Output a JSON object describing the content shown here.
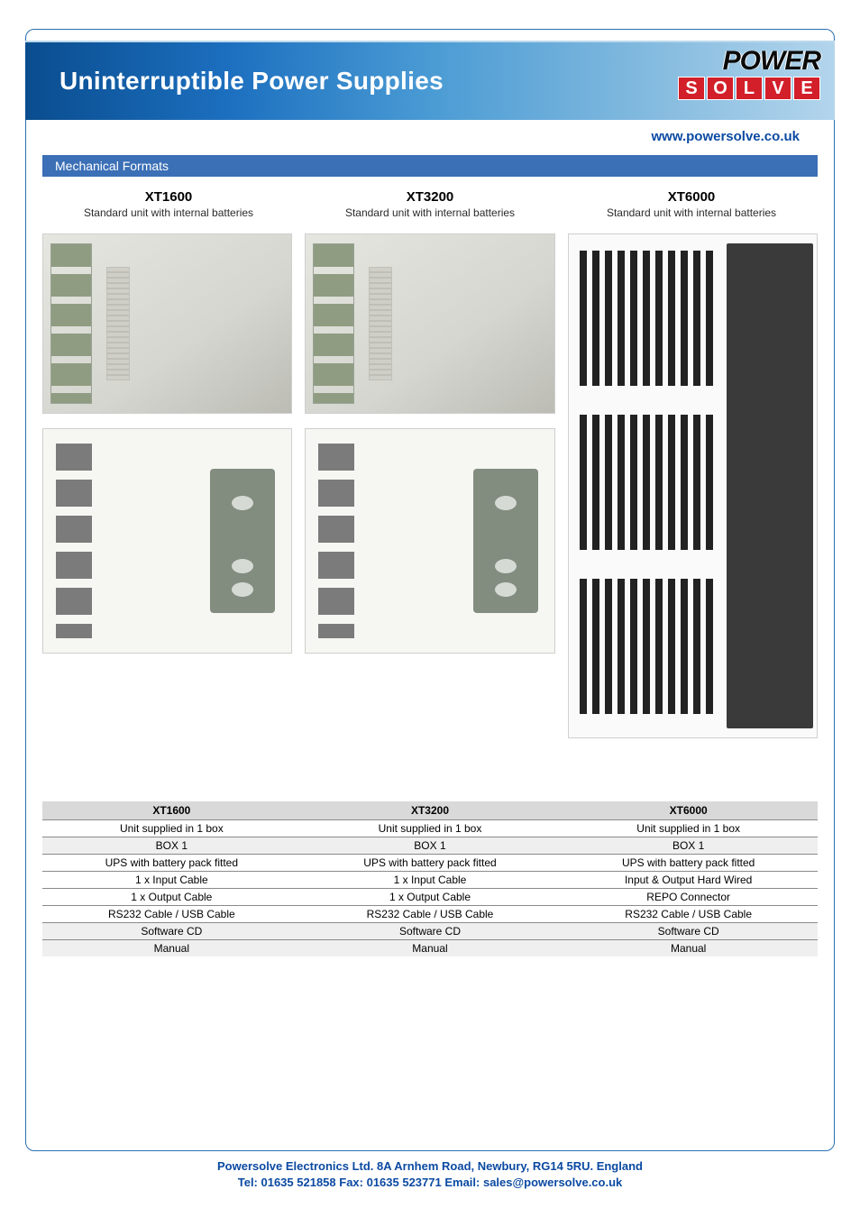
{
  "banner": {
    "title": "Uninterruptible Power Supplies"
  },
  "logo": {
    "top": "POWER",
    "bottom": [
      "S",
      "O",
      "L",
      "V",
      "E"
    ]
  },
  "url": "www.powersolve.co.uk",
  "section": {
    "label": "Mechanical Formats"
  },
  "products": [
    {
      "title": "XT1600",
      "subtitle": "Standard unit with internal batteries"
    },
    {
      "title": "XT3200",
      "subtitle": "Standard unit with internal batteries"
    },
    {
      "title": "XT6000",
      "subtitle": "Standard unit with internal batteries"
    }
  ],
  "table": {
    "headers": [
      "XT1600",
      "XT3200",
      "XT6000"
    ],
    "rows": [
      [
        "Unit supplied in 1 box",
        "Unit supplied in 1 box",
        "Unit supplied in 1 box"
      ],
      [
        "BOX 1",
        "BOX 1",
        "BOX 1"
      ],
      [
        "UPS with battery pack fitted",
        "UPS with battery pack fitted",
        "UPS with battery pack fitted"
      ],
      [
        "1 x Input Cable",
        "1 x Input Cable",
        "Input & Output Hard Wired"
      ],
      [
        "1 x Output Cable",
        "1 x Output Cable",
        "REPO Connector"
      ],
      [
        "RS232 Cable / USB Cable",
        "RS232 Cable / USB Cable",
        "RS232 Cable / USB Cable"
      ],
      [
        "Software CD",
        "Software CD",
        "Software CD"
      ],
      [
        "Manual",
        "Manual",
        "Manual"
      ]
    ],
    "alt_rows": [
      1,
      6,
      7
    ],
    "header_bg": "#d9d9d9",
    "alt_bg": "#efefef",
    "border_color": "#8a8a8a",
    "font_size": 12
  },
  "footer": {
    "line1": "Powersolve Electronics Ltd.  8A Arnhem Road,  Newbury, RG14 5RU.  England",
    "line2": "Tel: 01635 521858  Fax: 01635 523771  Email: sales@powersolve.co.uk"
  },
  "colors": {
    "brand_blue": "#0b4aa2",
    "section_blue": "#3b6fb6",
    "frame_border": "#2a6fb3",
    "logo_red": "#d21f2a"
  }
}
